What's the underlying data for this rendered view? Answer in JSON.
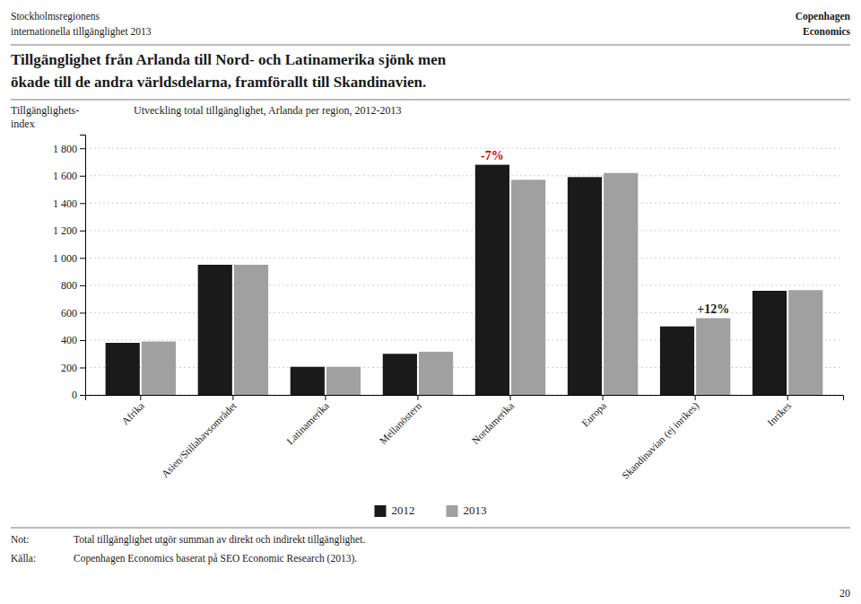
{
  "chart_data": {
    "type": "bar",
    "header": {
      "left": [
        "Stockholmsregionens",
        "internationella tillgänglighet 2013"
      ],
      "right": [
        "Copenhagen",
        "Economics"
      ]
    },
    "headline": [
      "Tillgänglighet från Arlanda till Nord- och Latinamerika sjönk men",
      "ökade till de andra världsdelarna, framförallt till Skandinavien."
    ],
    "title": "Utveckling total tillgänglighet, Arlanda per region, 2012-2013",
    "ylabel": "Tillgänglighets- index",
    "categories": [
      "Afrika",
      "Asien/Stillahavsområdet",
      "Latinamerika",
      "Mellanöstern",
      "Nordamerika",
      "Europa",
      "Skandinavian (ej inrikes)",
      "Inrikes"
    ],
    "series": [
      {
        "name": "2012",
        "color": "#1a1a1a",
        "values": [
          380,
          950,
          205,
          300,
          1680,
          1590,
          500,
          760
        ]
      },
      {
        "name": "2013",
        "color": "#a0a0a0",
        "values": [
          390,
          950,
          205,
          315,
          1570,
          1620,
          560,
          765
        ]
      }
    ],
    "ylim": [
      0,
      1900
    ],
    "yticks": [
      0,
      200,
      400,
      600,
      800,
      {
        "value": 1000,
        "label": "1 000"
      },
      {
        "value": 1200,
        "label": "1 200"
      },
      {
        "value": 1400,
        "label": "1 400"
      },
      {
        "value": 1600,
        "label": "1 600"
      },
      {
        "value": 1800,
        "label": "1 800"
      }
    ],
    "grid": true,
    "legend": "bottom",
    "annotations": [
      {
        "text": "-7%",
        "category": "Nordamerika",
        "series": "2012",
        "color": "#cc0000"
      },
      {
        "text": "+12%",
        "category": "Skandinavian (ej inrikes)",
        "series": "2013",
        "color": "#1a1a1a"
      }
    ],
    "footnotes": [
      {
        "label": "Not:",
        "text": "Total tillgänglighet utgör summan av direkt och indirekt tillgänglighet."
      },
      {
        "label": "Källa:",
        "text": "Copenhagen Economics baserat på SEO Economic Research (2013)."
      }
    ],
    "page_number": "20"
  }
}
